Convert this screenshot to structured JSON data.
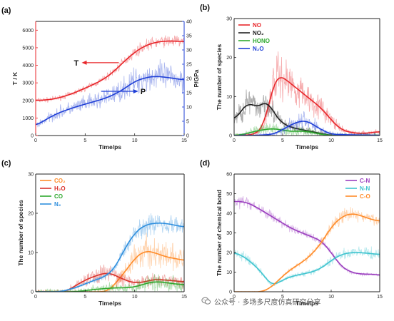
{
  "watermark": {
    "text": "公众号 · 多场多尺度仿真研究分享",
    "icon": "wechat-official-account-icon"
  },
  "chart_data": [
    {
      "id": "a",
      "type": "line",
      "panel_label": "(a)",
      "xlabel": "Time/ps",
      "ylabel": "T / K",
      "ylabel_right": "P/GPa",
      "xlim": [
        0,
        15
      ],
      "ylim": [
        0,
        6500
      ],
      "ylim_right": [
        0,
        40
      ],
      "xticks": [
        0,
        5,
        10,
        15
      ],
      "yticks": [
        0,
        1000,
        2000,
        3000,
        4000,
        5000,
        6000
      ],
      "yticks_right": [
        0,
        5,
        10,
        15,
        20,
        25,
        30,
        35,
        40
      ],
      "grid": false,
      "annotations": [
        {
          "text": "T",
          "color": "#e8262a",
          "arrow": "left",
          "points_to": "left-axis",
          "at": [
            8.4,
            4150
          ]
        },
        {
          "text": "P",
          "color": "#1f3fd6",
          "arrow": "right",
          "points_to": "right-axis",
          "at": [
            9.5,
            15.5
          ]
        }
      ],
      "series": [
        {
          "axis": "left",
          "color": "#e8262a",
          "noise": 0.06,
          "x": [
            0,
            1,
            2,
            3,
            4,
            5,
            6,
            7,
            8,
            9,
            10,
            11,
            12,
            13,
            14,
            15
          ],
          "y": [
            2000,
            2020,
            2100,
            2250,
            2450,
            2700,
            2950,
            3250,
            3700,
            4250,
            4750,
            5100,
            5300,
            5380,
            5380,
            5350
          ]
        },
        {
          "axis": "right",
          "color": "#1f3fd6",
          "noise": 0.22,
          "x": [
            0,
            1,
            2,
            3,
            4,
            5,
            6,
            7,
            8,
            9,
            10,
            11,
            12,
            13,
            14,
            15
          ],
          "y": [
            3.5,
            5.5,
            7.5,
            8.8,
            10,
            11,
            12,
            13,
            14.5,
            16.5,
            19,
            20.2,
            20.8,
            20.5,
            20,
            19.5
          ]
        }
      ]
    },
    {
      "id": "b",
      "type": "line",
      "panel_label": "(b)",
      "xlabel": "Time/ps",
      "ylabel": "The number of species",
      "xlim": [
        0,
        15
      ],
      "ylim": [
        0,
        30
      ],
      "xticks": [
        0,
        5,
        10,
        15
      ],
      "yticks": [
        0,
        10,
        20,
        30
      ],
      "grid": false,
      "legend_placement": "top-left",
      "series": [
        {
          "name": "NO",
          "color": "#e8262a",
          "noise": 0.35,
          "x": [
            0,
            2,
            3,
            3.5,
            4,
            4.5,
            5,
            6,
            7,
            8,
            9,
            10,
            11,
            12,
            13,
            14,
            15
          ],
          "y": [
            0,
            0.2,
            2,
            7,
            13,
            15.5,
            15,
            13,
            11,
            9,
            7,
            4,
            1.5,
            0.8,
            0.5,
            0.7,
            1
          ]
        },
        {
          "name": "NO₂",
          "color": "#222222",
          "noise": 0.4,
          "x": [
            0,
            1,
            1.5,
            2,
            2.5,
            3,
            3.5,
            4,
            5,
            6,
            7,
            8,
            9,
            10,
            15
          ],
          "y": [
            4,
            7,
            9,
            7.5,
            7,
            8.5,
            9,
            6,
            3,
            2,
            1.5,
            1,
            0.5,
            0,
            0
          ]
        },
        {
          "name": "HONO",
          "color": "#2ea82e",
          "noise": 0.5,
          "x": [
            0,
            1,
            2,
            3,
            4,
            5,
            6,
            7,
            8,
            9,
            10,
            15
          ],
          "y": [
            0,
            0.3,
            1,
            1.5,
            1.8,
            1.4,
            1,
            1.2,
            0.8,
            0.3,
            0,
            0
          ]
        },
        {
          "name": "N₂O",
          "color": "#1f3fd6",
          "noise": 0.45,
          "x": [
            0,
            2,
            4,
            5,
            6,
            7,
            7.5,
            8,
            9,
            10,
            15
          ],
          "y": [
            0,
            0,
            0.3,
            1.5,
            3,
            3.8,
            3.8,
            3,
            1.5,
            0.3,
            0
          ]
        }
      ]
    },
    {
      "id": "c",
      "type": "line",
      "panel_label": "(c)",
      "xlabel": "Time/ps",
      "ylabel": "The number of species",
      "xlim": [
        0,
        15
      ],
      "ylim": [
        0,
        30
      ],
      "xticks": [
        0,
        5,
        10,
        15
      ],
      "yticks": [
        0,
        10,
        20,
        30
      ],
      "grid": false,
      "legend_placement": "top-left",
      "series": [
        {
          "name": "CO₂",
          "color": "#ff8c2a",
          "noise": 0.35,
          "x": [
            0,
            7,
            7.5,
            8,
            9,
            10,
            11,
            12,
            13,
            14,
            15
          ],
          "y": [
            0,
            0,
            0.5,
            2,
            5,
            8.5,
            10.5,
            10,
            9,
            8.5,
            8
          ]
        },
        {
          "name": "H₂O",
          "color": "#d9302a",
          "noise": 0.4,
          "x": [
            0,
            3,
            4,
            5,
            6,
            7,
            7.5,
            8,
            9,
            10,
            11,
            12,
            13,
            14,
            15
          ],
          "y": [
            0,
            0,
            1.5,
            3,
            4,
            4.8,
            4.8,
            4.2,
            3,
            2.2,
            2.5,
            3.2,
            3,
            2.8,
            2.5
          ]
        },
        {
          "name": "CO",
          "color": "#2ea82e",
          "noise": 0.6,
          "x": [
            0,
            4,
            5,
            6,
            7,
            8,
            9,
            10,
            11,
            12,
            13,
            14,
            15
          ],
          "y": [
            0,
            0,
            0.3,
            0.6,
            0.8,
            1,
            1,
            1.2,
            2,
            2.6,
            2.4,
            2,
            1.8
          ]
        },
        {
          "name": "N₂",
          "color": "#2f8fde",
          "noise": 0.15,
          "x": [
            0,
            2.5,
            4,
            5,
            6,
            7,
            8,
            9,
            10,
            11,
            12,
            13,
            14,
            15
          ],
          "y": [
            0,
            0,
            1,
            2,
            3,
            3.8,
            6,
            11,
            15,
            17,
            17.5,
            17.5,
            17,
            16.5
          ]
        }
      ]
    },
    {
      "id": "d",
      "type": "line",
      "panel_label": "(d)",
      "xlabel": "Time/ps",
      "ylabel": "The number of chemical bond",
      "xlim": [
        0,
        15
      ],
      "ylim": [
        0,
        60
      ],
      "xticks": [
        0,
        5,
        10,
        15
      ],
      "yticks": [
        0,
        10,
        20,
        30,
        40,
        50,
        60
      ],
      "grid": false,
      "legend_placement": "top-right",
      "series": [
        {
          "name": "C-N",
          "color": "#9b3fbf",
          "noise": 0.06,
          "x": [
            0,
            1,
            2,
            3,
            4,
            5,
            6,
            7,
            8,
            9,
            10,
            11,
            12,
            13,
            14,
            15
          ],
          "y": [
            46,
            46,
            44,
            41,
            38,
            35,
            32,
            30,
            28,
            26,
            20,
            13,
            10,
            9,
            9,
            8.5
          ]
        },
        {
          "name": "N-N",
          "color": "#3fc4cf",
          "noise": 0.12,
          "x": [
            0,
            1,
            2,
            3,
            3.5,
            4,
            5,
            6,
            7,
            8,
            9,
            10,
            11,
            12,
            13,
            14,
            15
          ],
          "y": [
            20,
            18,
            14,
            9,
            5,
            3,
            6,
            8,
            9,
            10,
            12,
            16,
            19,
            20,
            20,
            19.5,
            19
          ]
        },
        {
          "name": "C-O",
          "color": "#ff8c2a",
          "noise": 0.08,
          "x": [
            0,
            3,
            4,
            5,
            6,
            7,
            8,
            9,
            10,
            11,
            12,
            13,
            14,
            15
          ],
          "y": [
            0,
            0,
            3,
            8,
            12,
            15,
            19,
            25,
            33,
            38,
            40,
            39,
            37,
            36
          ]
        }
      ]
    }
  ]
}
